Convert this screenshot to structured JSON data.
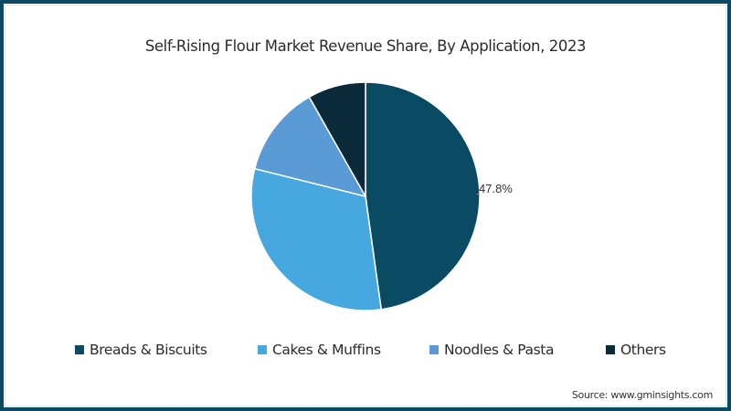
{
  "chart_data": {
    "type": "pie",
    "title": "Self-Rising Flour Market Revenue Share, By Application,  2023",
    "categories": [
      "Breads & Biscuits",
      "Cakes & Muffins",
      "Noodles & Pasta",
      "Others"
    ],
    "values": [
      47.8,
      31.1,
      12.9,
      8.2
    ],
    "unit": "%",
    "colors": [
      "#0a4b63",
      "#47a8e0",
      "#5b9bd5",
      "#0a2a3a"
    ],
    "data_labels": [
      {
        "category": "Breads & Biscuits",
        "text": "47.8%"
      }
    ],
    "start_angle_deg": 0,
    "direction": "clockwise",
    "legend_position": "bottom",
    "source": "Source: www.gminsights.com"
  },
  "header": {
    "title": "Self-Rising Flour Market Revenue Share, By Application,  2023"
  },
  "labels": {
    "breads": "47.8%"
  },
  "legend": {
    "items": [
      {
        "label": "Breads & Biscuits",
        "color": "#0a4b63"
      },
      {
        "label": "Cakes & Muffins",
        "color": "#47a8e0"
      },
      {
        "label": "Noodles & Pasta",
        "color": "#5b9bd5"
      },
      {
        "label": "Others",
        "color": "#0a2a3a"
      }
    ]
  },
  "footer": {
    "source": "Source: www.gminsights.com"
  }
}
